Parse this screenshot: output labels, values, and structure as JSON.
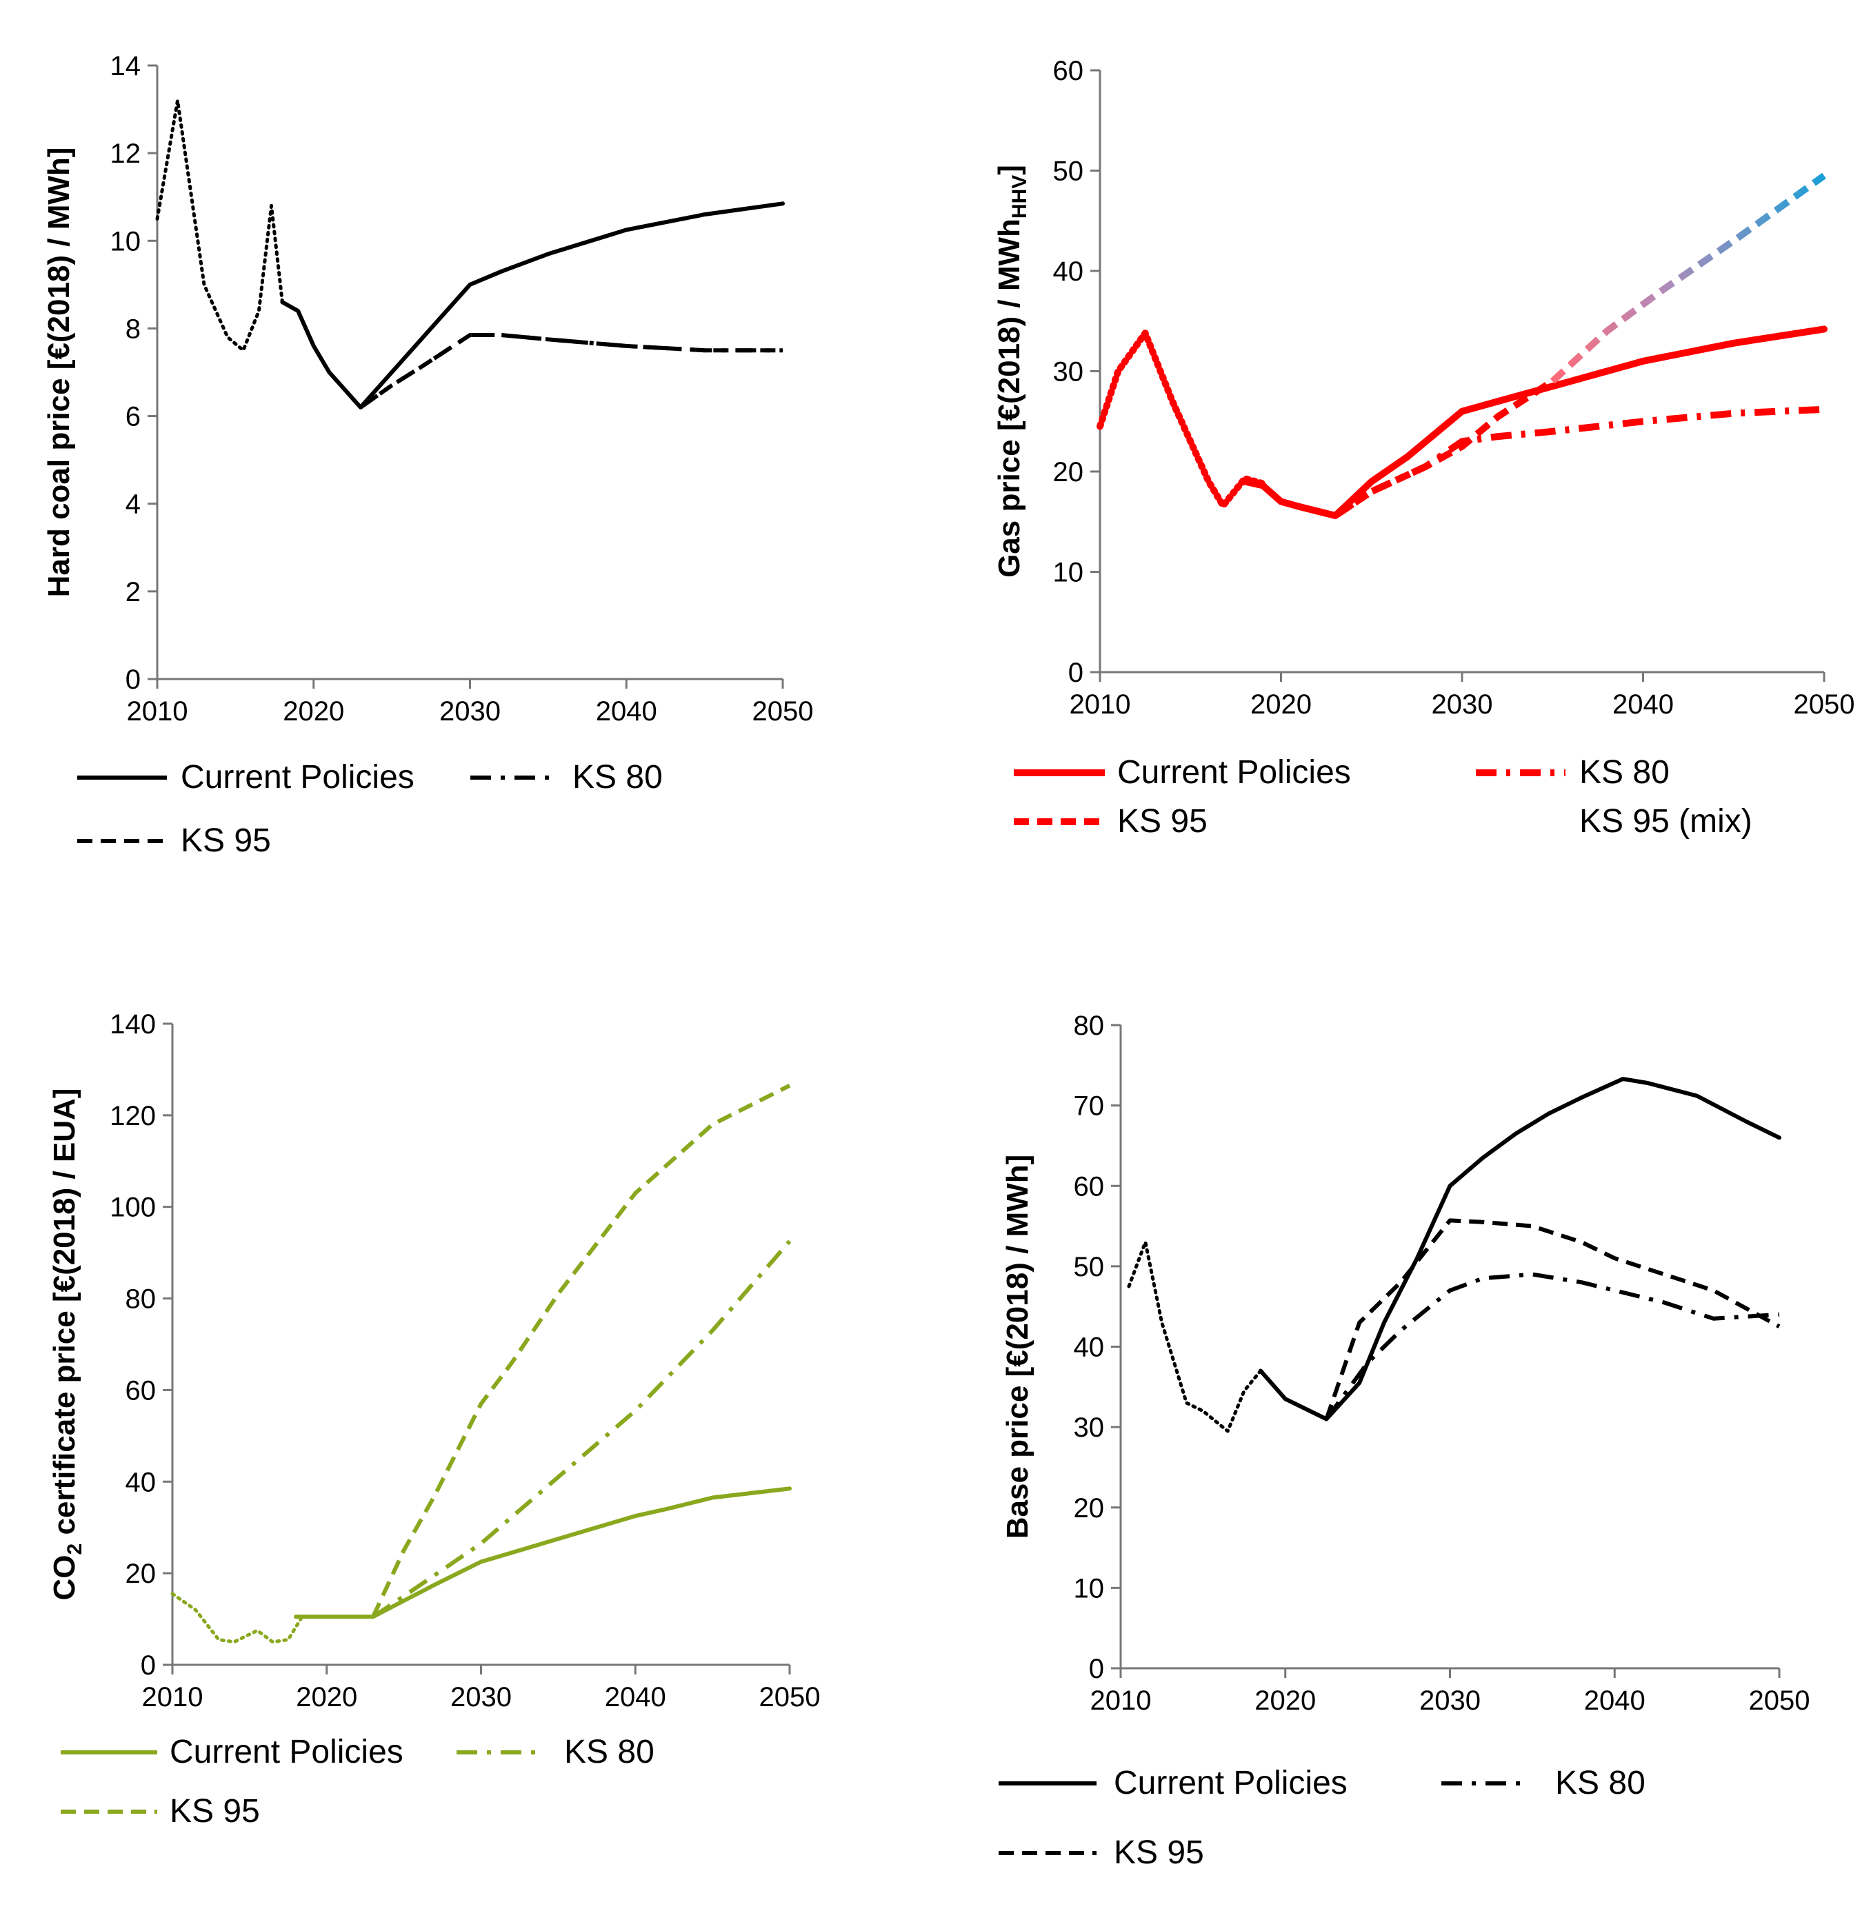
{
  "chart_data": [
    {
      "type": "line",
      "id": "coal",
      "ylabel": "Hard coal price [€(2018) / MWh]",
      "x_ticks": [
        "2010",
        "2020",
        "2030",
        "2040",
        "2050"
      ],
      "y_ticks": [
        "0",
        "2",
        "4",
        "6",
        "8",
        "10",
        "12",
        "14"
      ],
      "xlim": [
        2010,
        2050
      ],
      "ylim": [
        0,
        14
      ],
      "legend_position": "bottom",
      "series": [
        {
          "name": "historical",
          "legend": false,
          "style": "dotted",
          "color": "#000000",
          "x": [
            2010,
            2011.3,
            2013,
            2014.5,
            2015.5,
            2016.5,
            2017.3,
            2018
          ],
          "y": [
            10.5,
            13.2,
            9.0,
            7.8,
            7.5,
            8.4,
            10.8,
            8.6
          ]
        },
        {
          "name": "Current Policies",
          "legend": true,
          "style": "solid",
          "color": "#000000",
          "x": [
            2018,
            2019,
            2020,
            2021,
            2023,
            2025,
            2027,
            2030,
            2032,
            2035,
            2040,
            2045,
            2050
          ],
          "y": [
            8.6,
            8.4,
            7.6,
            7.0,
            6.2,
            7.0,
            7.8,
            9.0,
            9.3,
            9.7,
            10.25,
            10.6,
            10.85
          ]
        },
        {
          "name": "KS 80",
          "legend": true,
          "style": "dashdot",
          "color": "#000000",
          "x": [
            2023,
            2025,
            2027,
            2030,
            2032,
            2035,
            2040,
            2045,
            2050
          ],
          "y": [
            6.2,
            6.7,
            7.15,
            7.85,
            7.85,
            7.75,
            7.6,
            7.5,
            7.5
          ]
        },
        {
          "name": "KS 95",
          "legend": true,
          "style": "dashed",
          "color": "#000000",
          "x": [
            2023,
            2025,
            2027,
            2030,
            2032,
            2035,
            2040,
            2045,
            2050
          ],
          "y": [
            6.2,
            6.7,
            7.15,
            7.85,
            7.85,
            7.75,
            7.6,
            7.5,
            7.5
          ]
        }
      ]
    },
    {
      "type": "line",
      "id": "gas",
      "ylabel": "Gas price [€(2018)  / MWh",
      "ylabel_subscript": "HHV",
      "ylabel_end": "]",
      "x_ticks": [
        "2010",
        "2020",
        "2030",
        "2040",
        "2050"
      ],
      "y_ticks": [
        "0",
        "10",
        "20",
        "30",
        "40",
        "50",
        "60"
      ],
      "xlim": [
        2010,
        2050
      ],
      "ylim": [
        0,
        60
      ],
      "legend_position": "bottom",
      "series": [
        {
          "name": "historical",
          "legend": false,
          "style": "dotted",
          "color": "#ff0000",
          "x": [
            2010,
            2011,
            2012.5,
            2014,
            2016,
            2016.8,
            2018,
            2019
          ],
          "y": [
            24.5,
            30.0,
            33.8,
            27.0,
            19.0,
            16.6,
            19.3,
            18.8
          ]
        },
        {
          "name": "Current Policies",
          "legend": true,
          "style": "solid",
          "color": "#ff0000",
          "x": [
            2018,
            2019,
            2020,
            2021,
            2023,
            2025,
            2027,
            2030,
            2032,
            2035,
            2040,
            2045,
            2050
          ],
          "y": [
            19.0,
            18.6,
            17.0,
            16.5,
            15.6,
            19.0,
            21.5,
            26.0,
            27.0,
            28.5,
            31.0,
            32.8,
            34.2
          ]
        },
        {
          "name": "KS 80",
          "legend": true,
          "style": "dashdot",
          "color": "#ff0000",
          "x": [
            2023,
            2025,
            2028,
            2030,
            2032,
            2035,
            2040,
            2045,
            2050
          ],
          "y": [
            15.6,
            18.0,
            20.5,
            23.0,
            23.5,
            24.0,
            25.0,
            25.8,
            26.2
          ]
        },
        {
          "name": "KS 95",
          "legend": true,
          "style": "dashed",
          "color": "#ff0000",
          "x": [
            2023,
            2025,
            2028,
            2030,
            2032,
            2035
          ],
          "y": [
            15.6,
            18.0,
            20.5,
            22.5,
            25.5,
            29.0
          ]
        },
        {
          "name": "KS 95 (mix)",
          "legend": true,
          "style": "dashed",
          "color_from": "#ff6a78",
          "color_via": "#b48ab8",
          "color_to": "#1aa0d8",
          "x": [
            2035,
            2038,
            2041,
            2045,
            2050
          ],
          "y": [
            29.0,
            34.0,
            38.0,
            43.0,
            49.5
          ]
        }
      ]
    },
    {
      "type": "line",
      "id": "co2",
      "ylabel": "CO",
      "ylabel_subscript": "2",
      "ylabel_end": " certificate price [€(2018) / EUA]",
      "x_ticks": [
        "2010",
        "2020",
        "2030",
        "2040",
        "2050"
      ],
      "y_ticks": [
        "0",
        "20",
        "40",
        "60",
        "80",
        "100",
        "120",
        "140"
      ],
      "xlim": [
        2010,
        2050
      ],
      "ylim": [
        0,
        140
      ],
      "legend_position": "bottom",
      "series": [
        {
          "name": "historical",
          "legend": false,
          "style": "dotted",
          "color": "#8aa81e",
          "x": [
            2010,
            2011.5,
            2013,
            2014,
            2015.5,
            2016.5,
            2017.5,
            2018.5
          ],
          "y": [
            15.5,
            12.0,
            5.5,
            5.0,
            7.5,
            5.0,
            5.5,
            11.0
          ]
        },
        {
          "name": "Current Policies",
          "legend": true,
          "style": "solid",
          "color": "#8aa81e",
          "x": [
            2018,
            2020,
            2023,
            2025,
            2027,
            2030,
            2032,
            2035,
            2037,
            2040,
            2042,
            2045,
            2050
          ],
          "y": [
            10.5,
            10.5,
            10.5,
            14.0,
            17.5,
            22.5,
            24.5,
            27.5,
            29.5,
            32.5,
            34.0,
            36.5,
            38.5
          ]
        },
        {
          "name": "KS 80",
          "legend": true,
          "style": "dashdot",
          "color": "#8aa81e",
          "x": [
            2023,
            2025,
            2030,
            2035,
            2040,
            2045,
            2050
          ],
          "y": [
            10.5,
            15.0,
            26.5,
            41.0,
            55.5,
            73.0,
            92.5
          ]
        },
        {
          "name": "KS 95",
          "legend": true,
          "style": "dashed",
          "color": "#8aa81e",
          "x": [
            2023,
            2025,
            2027,
            2030,
            2032,
            2035,
            2040,
            2042,
            2045,
            2050
          ],
          "y": [
            10.5,
            25.0,
            37.0,
            57.0,
            66.0,
            81.0,
            103.0,
            109.0,
            118.0,
            126.5
          ]
        }
      ]
    },
    {
      "type": "line",
      "id": "base",
      "ylabel": "Base price [€(2018) / MWh]",
      "x_ticks": [
        "2010",
        "2020",
        "2030",
        "2040",
        "2050"
      ],
      "y_ticks": [
        "0",
        "10",
        "20",
        "30",
        "40",
        "50",
        "60",
        "70",
        "80"
      ],
      "xlim": [
        2010,
        2050
      ],
      "ylim": [
        0,
        80
      ],
      "legend_position": "bottom",
      "series": [
        {
          "name": "historical",
          "legend": false,
          "style": "dotted",
          "color": "#000000",
          "x": [
            2010.5,
            2011.5,
            2012.5,
            2014,
            2015,
            2016.5,
            2017.5,
            2018.5
          ],
          "y": [
            47.5,
            53.0,
            43.0,
            33.0,
            32.0,
            29.5,
            34.5,
            37.0
          ]
        },
        {
          "name": "Current Policies",
          "legend": true,
          "style": "solid",
          "color": "#000000",
          "x": [
            2018.5,
            2020,
            2022.5,
            2024.5,
            2026,
            2028,
            2030,
            2032,
            2034,
            2036,
            2038,
            2040.5,
            2042,
            2045,
            2048,
            2050
          ],
          "y": [
            37.0,
            33.5,
            31.0,
            35.5,
            43.0,
            51.0,
            60.0,
            63.5,
            66.5,
            69.0,
            71.0,
            73.3,
            72.8,
            71.2,
            68.0,
            66.0
          ]
        },
        {
          "name": "KS 80",
          "legend": true,
          "style": "dashdot",
          "color": "#000000",
          "x": [
            2022.5,
            2025,
            2027,
            2030,
            2032,
            2035,
            2038,
            2040,
            2043,
            2046,
            2050
          ],
          "y": [
            31.0,
            38.0,
            42.0,
            47.0,
            48.5,
            49.0,
            48.0,
            47.0,
            45.5,
            43.5,
            44.0
          ]
        },
        {
          "name": "KS 95",
          "legend": true,
          "style": "dashed",
          "color": "#000000",
          "x": [
            2022.5,
            2024.5,
            2027,
            2030,
            2032,
            2035,
            2038,
            2040,
            2043,
            2046,
            2050
          ],
          "y": [
            31.0,
            43.0,
            48.0,
            55.7,
            55.5,
            55.0,
            53.0,
            51.0,
            49.0,
            47.0,
            42.5
          ]
        }
      ]
    }
  ]
}
